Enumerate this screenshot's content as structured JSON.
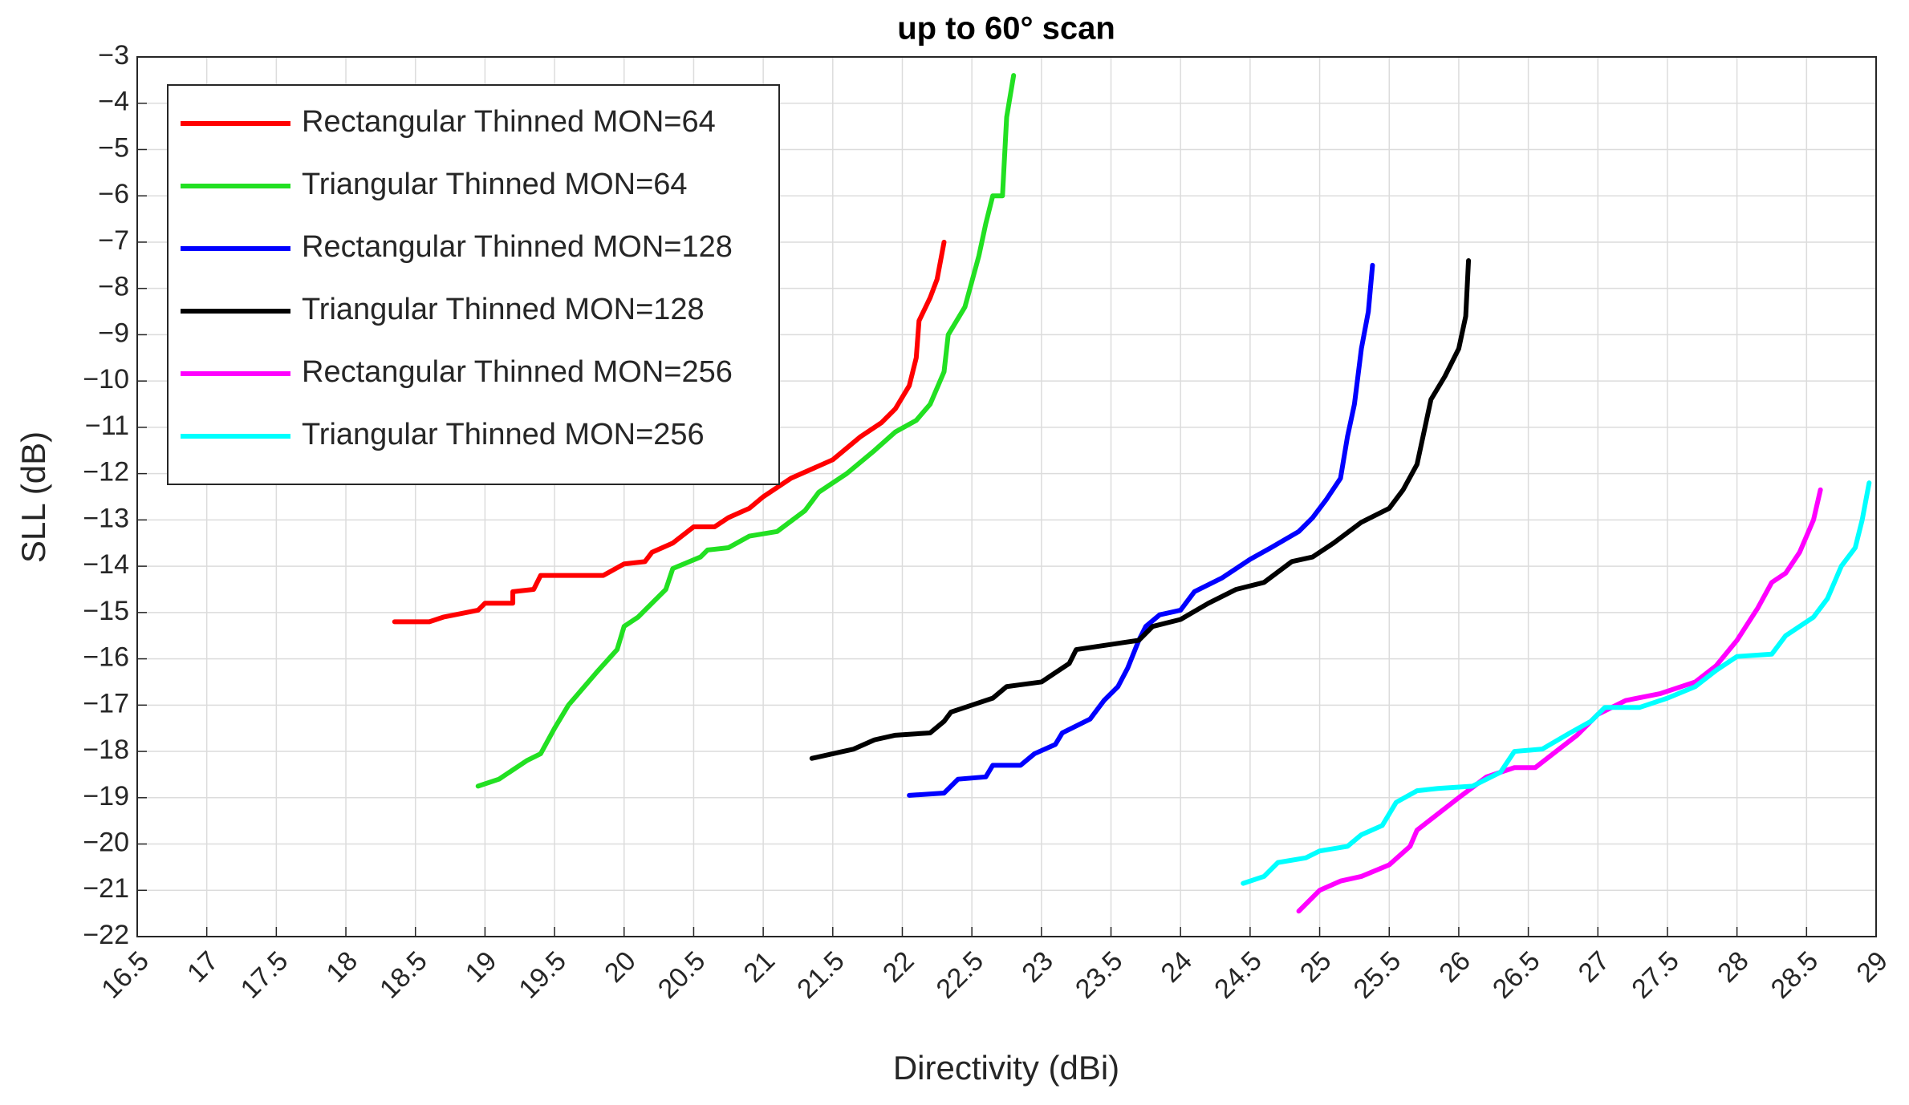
{
  "chart_data": {
    "type": "line",
    "title": "up to 60° scan",
    "xlabel": "Directivity (dBi)",
    "ylabel": "SLL (dB)",
    "xlim": [
      16.5,
      29
    ],
    "ylim": [
      -22,
      -3
    ],
    "xticks": [
      16.5,
      17,
      17.5,
      18,
      18.5,
      19,
      19.5,
      20,
      20.5,
      21,
      21.5,
      22,
      22.5,
      23,
      23.5,
      24,
      24.5,
      25,
      25.5,
      26,
      26.5,
      27,
      27.5,
      28,
      28.5,
      29
    ],
    "yticks": [
      {
        "value": -22,
        "label": "−22"
      },
      {
        "value": -21,
        "label": "−21"
      },
      {
        "value": -20,
        "label": "−20"
      },
      {
        "value": -19,
        "label": "−19"
      },
      {
        "value": -18,
        "label": "−18"
      },
      {
        "value": -17,
        "label": "−17"
      },
      {
        "value": -16,
        "label": "−16"
      },
      {
        "value": -15,
        "label": "−15"
      },
      {
        "value": -14,
        "label": "−14"
      },
      {
        "value": -13,
        "label": "−13"
      },
      {
        "value": -12,
        "label": "−12"
      },
      {
        "value": -11,
        "label": "−11"
      },
      {
        "value": -10,
        "label": "−10"
      },
      {
        "value": -9,
        "label": "−9"
      },
      {
        "value": -8,
        "label": "−8"
      },
      {
        "value": -7,
        "label": "−7"
      },
      {
        "value": -6,
        "label": "−6"
      },
      {
        "value": -5,
        "label": "−5"
      },
      {
        "value": -4,
        "label": "−4"
      },
      {
        "value": -3,
        "label": "−3"
      }
    ],
    "grid": true,
    "legend": "northwest",
    "series": [
      {
        "name": "Rectangular Thinned MON=64",
        "color": "#ff0000",
        "x": [
          18.35,
          18.6,
          18.7,
          18.95,
          19.0,
          19.2,
          19.2,
          19.35,
          19.4,
          19.85,
          20.0,
          20.15,
          20.2,
          20.35,
          20.5,
          20.65,
          20.75,
          20.9,
          21.0,
          21.2,
          21.5,
          21.7,
          21.85,
          21.95,
          22.05,
          22.1,
          22.12,
          22.2,
          22.25,
          22.3
        ],
        "values": [
          -15.2,
          -15.2,
          -15.1,
          -14.95,
          -14.8,
          -14.8,
          -14.55,
          -14.5,
          -14.2,
          -14.2,
          -13.95,
          -13.9,
          -13.7,
          -13.5,
          -13.15,
          -13.15,
          -12.95,
          -12.75,
          -12.5,
          -12.1,
          -11.7,
          -11.2,
          -10.9,
          -10.6,
          -10.1,
          -9.5,
          -8.7,
          -8.2,
          -7.8,
          -7.0
        ]
      },
      {
        "name": "Triangular Thinned MON=64",
        "color": "#22e022",
        "x": [
          18.95,
          19.1,
          19.3,
          19.4,
          19.5,
          19.6,
          19.8,
          19.95,
          20.0,
          20.1,
          20.3,
          20.35,
          20.55,
          20.6,
          20.75,
          20.9,
          21.1,
          21.3,
          21.4,
          21.6,
          21.8,
          21.95,
          22.1,
          22.2,
          22.3,
          22.33,
          22.45,
          22.55,
          22.6,
          22.65,
          22.72,
          22.75,
          22.8
        ],
        "values": [
          -18.75,
          -18.6,
          -18.2,
          -18.05,
          -17.5,
          -17.0,
          -16.3,
          -15.8,
          -15.3,
          -15.1,
          -14.5,
          -14.05,
          -13.8,
          -13.65,
          -13.6,
          -13.35,
          -13.25,
          -12.8,
          -12.4,
          -12.0,
          -11.5,
          -11.1,
          -10.85,
          -10.5,
          -9.8,
          -9.0,
          -8.4,
          -7.3,
          -6.6,
          -6.0,
          -6.0,
          -4.3,
          -3.4
        ]
      },
      {
        "name": "Rectangular Thinned MON=128",
        "color": "#0000ff",
        "x": [
          22.05,
          22.3,
          22.4,
          22.6,
          22.65,
          22.85,
          22.95,
          23.1,
          23.15,
          23.35,
          23.45,
          23.55,
          23.62,
          23.7,
          23.75,
          23.85,
          24.0,
          24.1,
          24.3,
          24.5,
          24.65,
          24.85,
          24.95,
          25.05,
          25.15,
          25.2,
          25.25,
          25.3,
          25.35,
          25.38
        ],
        "values": [
          -18.95,
          -18.9,
          -18.6,
          -18.55,
          -18.3,
          -18.3,
          -18.05,
          -17.85,
          -17.6,
          -17.3,
          -16.9,
          -16.6,
          -16.2,
          -15.6,
          -15.3,
          -15.05,
          -14.95,
          -14.55,
          -14.25,
          -13.85,
          -13.6,
          -13.25,
          -12.95,
          -12.55,
          -12.1,
          -11.2,
          -10.5,
          -9.3,
          -8.5,
          -7.5
        ]
      },
      {
        "name": "Triangular Thinned MON=128",
        "color": "#000000",
        "x": [
          21.35,
          21.5,
          21.65,
          21.8,
          21.95,
          22.2,
          22.3,
          22.35,
          22.5,
          22.65,
          22.75,
          23.0,
          23.1,
          23.2,
          23.25,
          23.7,
          23.8,
          24.0,
          24.2,
          24.4,
          24.6,
          24.8,
          24.95,
          25.1,
          25.3,
          25.5,
          25.6,
          25.7,
          25.75,
          25.8,
          25.9,
          26.0,
          26.05,
          26.07
        ],
        "values": [
          -18.15,
          -18.05,
          -17.95,
          -17.75,
          -17.65,
          -17.6,
          -17.35,
          -17.15,
          -17.0,
          -16.85,
          -16.6,
          -16.5,
          -16.3,
          -16.1,
          -15.8,
          -15.6,
          -15.3,
          -15.15,
          -14.8,
          -14.5,
          -14.35,
          -13.9,
          -13.8,
          -13.5,
          -13.05,
          -12.75,
          -12.35,
          -11.8,
          -11.1,
          -10.4,
          -9.9,
          -9.3,
          -8.6,
          -7.4
        ]
      },
      {
        "name": "Rectangular Thinned MON=256",
        "color": "#ff00ff",
        "x": [
          24.85,
          25.0,
          25.15,
          25.3,
          25.5,
          25.65,
          25.7,
          25.85,
          26.0,
          26.2,
          26.4,
          26.55,
          26.7,
          26.85,
          27.0,
          27.2,
          27.45,
          27.7,
          27.85,
          28.0,
          28.15,
          28.25,
          28.35,
          28.45,
          28.55,
          28.6
        ],
        "values": [
          -21.45,
          -21.0,
          -20.8,
          -20.7,
          -20.45,
          -20.05,
          -19.7,
          -19.35,
          -19.0,
          -18.55,
          -18.35,
          -18.35,
          -18.0,
          -17.65,
          -17.2,
          -16.9,
          -16.75,
          -16.5,
          -16.15,
          -15.6,
          -14.9,
          -14.35,
          -14.15,
          -13.7,
          -13.0,
          -12.35
        ]
      },
      {
        "name": "Triangular Thinned MON=256",
        "color": "#00ffff",
        "x": [
          24.45,
          24.6,
          24.7,
          24.9,
          25.0,
          25.2,
          25.3,
          25.45,
          25.55,
          25.7,
          25.85,
          26.1,
          26.3,
          26.4,
          26.6,
          26.8,
          26.95,
          27.05,
          27.3,
          27.5,
          27.7,
          27.85,
          28.0,
          28.25,
          28.35,
          28.55,
          28.65,
          28.75,
          28.85,
          28.9,
          28.95
        ],
        "values": [
          -20.85,
          -20.7,
          -20.4,
          -20.3,
          -20.15,
          -20.05,
          -19.8,
          -19.6,
          -19.1,
          -18.85,
          -18.8,
          -18.75,
          -18.45,
          -18.0,
          -17.95,
          -17.6,
          -17.35,
          -17.05,
          -17.05,
          -16.85,
          -16.6,
          -16.25,
          -15.95,
          -15.9,
          -15.5,
          -15.1,
          -14.7,
          -14.0,
          -13.6,
          -13.0,
          -12.2
        ]
      }
    ]
  }
}
